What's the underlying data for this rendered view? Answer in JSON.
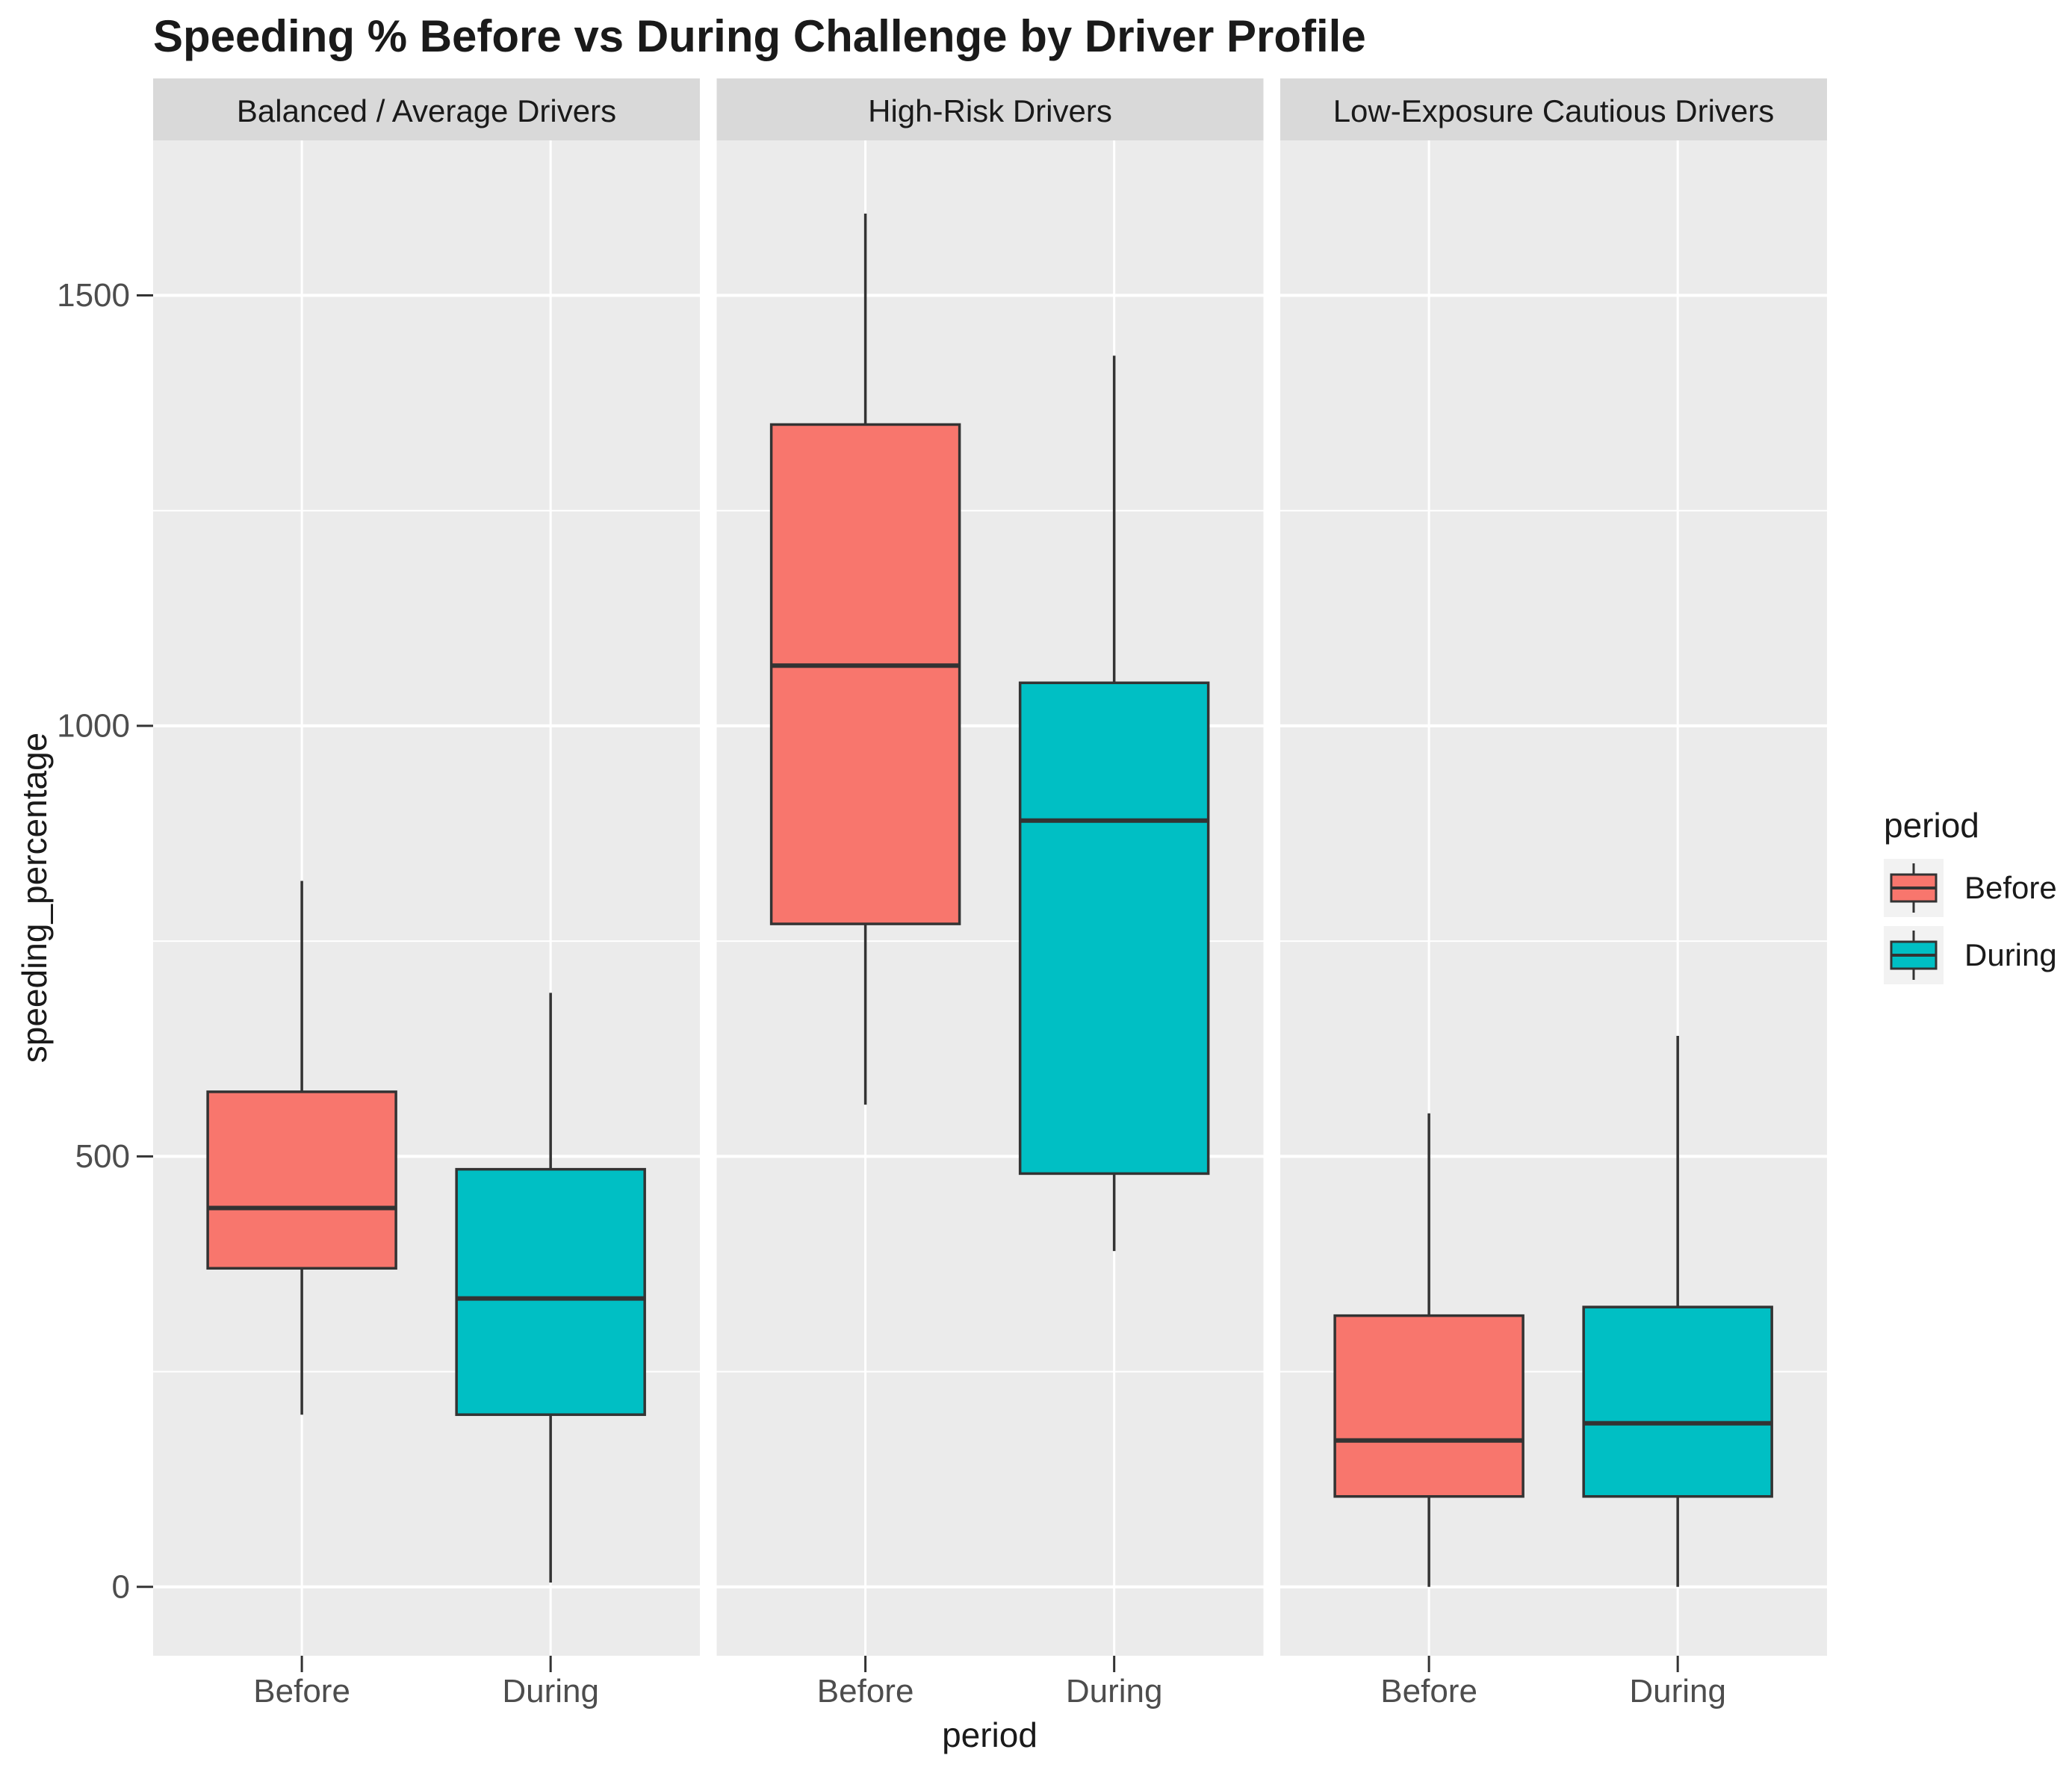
{
  "title": "Speeding % Before vs During Challenge by Driver Profile",
  "axes": {
    "x_title": "period",
    "y_title": "speeding_percentage",
    "y_tick_labels": [
      "0",
      "500",
      "1000",
      "1500"
    ],
    "y_tick_values": [
      0,
      500,
      1000,
      1500
    ],
    "x_categories": [
      "Before",
      "During"
    ]
  },
  "legend": {
    "title": "period",
    "items": [
      {
        "label": "Before",
        "color": "#F8766D"
      },
      {
        "label": "During",
        "color": "#00BFC4"
      }
    ]
  },
  "colors": {
    "before_fill": "#F8766D",
    "during_fill": "#00BFC4",
    "panel_bg": "#EBEBEB",
    "strip_bg": "#D9D9D9",
    "gridline": "#FFFFFF",
    "box_stroke": "#333333",
    "tick_mark": "#333333",
    "tick_text": "#4D4D4D",
    "strip_text": "#1A1A1A",
    "title_text": "#1A1A1A",
    "legend_key_bg": "#F2F2F2"
  },
  "chart_data": {
    "type": "boxplot",
    "title": "Speeding % Before vs During Challenge by Driver Profile",
    "xlabel": "period",
    "ylabel": "speeding_percentage",
    "ylim": [
      -80,
      1680
    ],
    "y_gridlines_major": [
      0,
      500,
      1000,
      1500
    ],
    "y_gridlines_minor": [
      250,
      750,
      1250,
      1750
    ],
    "categories": [
      "Before",
      "During"
    ],
    "legend_position": "right",
    "facets": [
      {
        "label": "Balanced / Average Drivers",
        "boxes": [
          {
            "period": "Before",
            "min": 200,
            "q1": 370,
            "median": 440,
            "q3": 575,
            "max": 820
          },
          {
            "period": "During",
            "min": 5,
            "q1": 200,
            "median": 335,
            "q3": 485,
            "max": 690
          }
        ]
      },
      {
        "label": "High-Risk Drivers",
        "boxes": [
          {
            "period": "Before",
            "min": 560,
            "q1": 770,
            "median": 1070,
            "q3": 1350,
            "max": 1595
          },
          {
            "period": "During",
            "min": 390,
            "q1": 480,
            "median": 890,
            "q3": 1050,
            "max": 1430
          }
        ]
      },
      {
        "label": "Low-Exposure Cautious Drivers",
        "boxes": [
          {
            "period": "Before",
            "min": 0,
            "q1": 105,
            "median": 170,
            "q3": 315,
            "max": 550
          },
          {
            "period": "During",
            "min": 0,
            "q1": 105,
            "median": 190,
            "q3": 325,
            "max": 640
          }
        ]
      }
    ]
  }
}
